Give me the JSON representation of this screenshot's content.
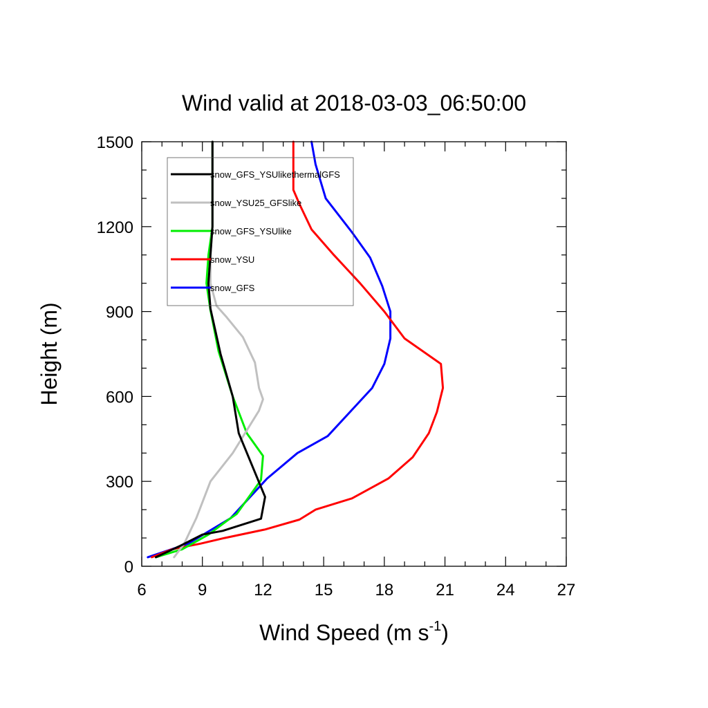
{
  "chart_data": {
    "type": "line",
    "title": "Wind valid at 2018-03-03_06:50:00",
    "xlabel": "Wind Speed (m s",
    "xlabel_sup": "-1",
    "xlabel_end": ")",
    "ylabel": "Height (m)",
    "xlim": [
      6,
      27
    ],
    "ylim": [
      0,
      1500
    ],
    "xticks": [
      6,
      9,
      12,
      15,
      18,
      21,
      24,
      27
    ],
    "yticks": [
      0,
      300,
      600,
      900,
      1200,
      1500
    ],
    "legend_position": "top-left",
    "series": [
      {
        "name": "snow_GFS_YSUlikethermalGFS",
        "color": "#000000",
        "points": [
          [
            6.7,
            32
          ],
          [
            7.9,
            72
          ],
          [
            9.0,
            112
          ],
          [
            10.0,
            125
          ],
          [
            11.9,
            168
          ],
          [
            12.1,
            245
          ],
          [
            10.8,
            470
          ],
          [
            10.5,
            600
          ],
          [
            9.9,
            750
          ],
          [
            9.4,
            910
          ],
          [
            9.3,
            1000
          ],
          [
            9.4,
            1100
          ],
          [
            9.5,
            1200
          ],
          [
            9.5,
            1300
          ],
          [
            9.5,
            1500
          ]
        ]
      },
      {
        "name": "snow_YSU25_GFSlike",
        "color": "#c0c0c0",
        "points": [
          [
            7.6,
            32
          ],
          [
            8.1,
            80
          ],
          [
            8.7,
            170
          ],
          [
            9.4,
            300
          ],
          [
            10.5,
            400
          ],
          [
            11.8,
            550
          ],
          [
            12.0,
            590
          ],
          [
            11.8,
            630
          ],
          [
            11.6,
            720
          ],
          [
            11.0,
            810
          ],
          [
            10.2,
            880
          ],
          [
            9.7,
            920
          ],
          [
            9.4,
            1000
          ],
          [
            9.4,
            1100
          ],
          [
            9.5,
            1200
          ],
          [
            9.5,
            1300
          ],
          [
            9.5,
            1500
          ]
        ]
      },
      {
        "name": "snow_GFS_YSUlike",
        "color": "#00ee00",
        "points": [
          [
            6.7,
            32
          ],
          [
            8.0,
            60
          ],
          [
            9.3,
            112
          ],
          [
            10.2,
            160
          ],
          [
            10.7,
            185
          ],
          [
            11.3,
            245
          ],
          [
            11.9,
            305
          ],
          [
            12.0,
            390
          ],
          [
            11.2,
            470
          ],
          [
            10.5,
            600
          ],
          [
            9.8,
            760
          ],
          [
            9.4,
            905
          ],
          [
            9.2,
            1000
          ],
          [
            9.3,
            1100
          ],
          [
            9.5,
            1200
          ],
          [
            9.5,
            1300
          ],
          [
            9.5,
            1500
          ]
        ]
      },
      {
        "name": "snow_YSU",
        "color": "#ff0000",
        "points": [
          [
            6.5,
            32
          ],
          [
            7.5,
            60
          ],
          [
            8.9,
            80
          ],
          [
            10.1,
            100
          ],
          [
            12.1,
            130
          ],
          [
            13.8,
            165
          ],
          [
            14.6,
            200
          ],
          [
            16.4,
            240
          ],
          [
            18.2,
            310
          ],
          [
            19.4,
            385
          ],
          [
            20.2,
            470
          ],
          [
            20.6,
            545
          ],
          [
            20.9,
            630
          ],
          [
            20.8,
            715
          ],
          [
            19.0,
            805
          ],
          [
            18.0,
            900
          ],
          [
            16.8,
            1000
          ],
          [
            15.5,
            1100
          ],
          [
            14.4,
            1190
          ],
          [
            13.8,
            1280
          ],
          [
            13.5,
            1330
          ],
          [
            13.5,
            1500
          ]
        ]
      },
      {
        "name": "snow_GFS",
        "color": "#0000ff",
        "points": [
          [
            6.3,
            32
          ],
          [
            8.3,
            80
          ],
          [
            10.4,
            170
          ],
          [
            12.2,
            310
          ],
          [
            13.7,
            400
          ],
          [
            15.2,
            460
          ],
          [
            16.3,
            545
          ],
          [
            17.4,
            630
          ],
          [
            18.0,
            715
          ],
          [
            18.3,
            805
          ],
          [
            18.3,
            900
          ],
          [
            17.9,
            990
          ],
          [
            17.3,
            1090
          ],
          [
            16.4,
            1180
          ],
          [
            15.1,
            1300
          ],
          [
            14.6,
            1420
          ],
          [
            14.4,
            1500
          ]
        ]
      }
    ]
  }
}
